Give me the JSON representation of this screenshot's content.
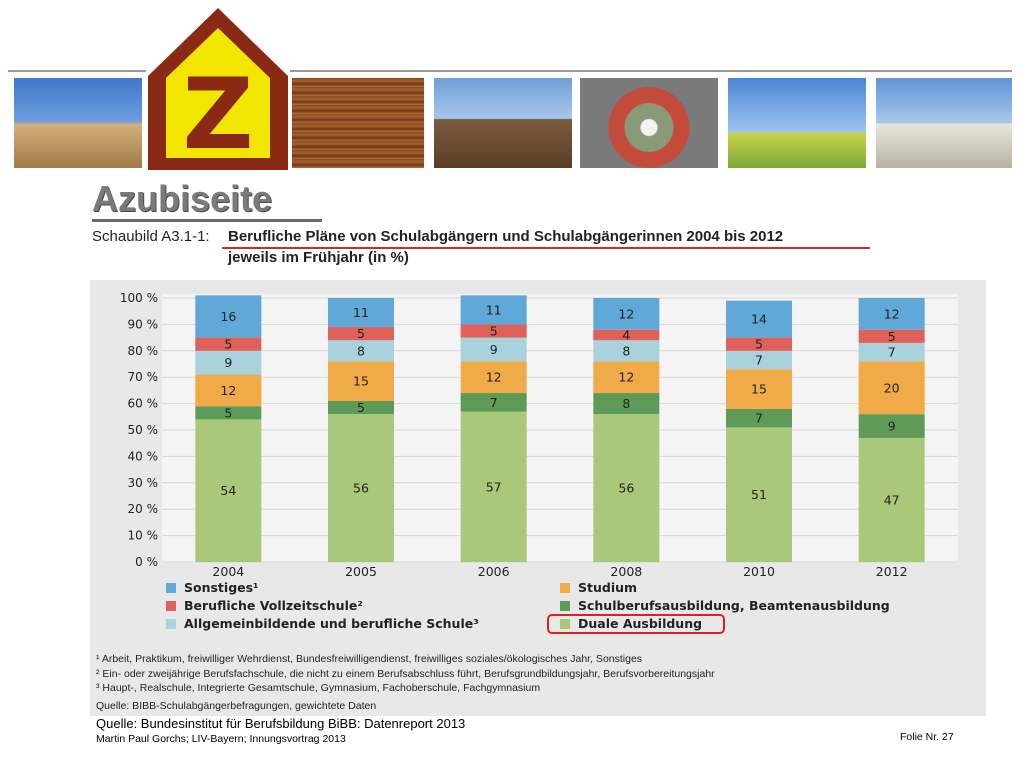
{
  "page": {
    "title": "Azubiseite",
    "schaubild_label": "Schaubild A3.1-1:",
    "chart_heading_line1": "Berufliche Pläne von Schulabgängern und Schulabgängerinnen 2004 bis 2012",
    "chart_heading_line2": "jeweils im Frühjahr (in %)",
    "source": "Quelle: Bundesinstitut für Berufsbildung BiBB: Datenreport 2013",
    "author": "Martin Paul Gorchs; LIV-Bayern; Innungsvortrag 2013",
    "slide_number": "Folie Nr. 27",
    "logo_letter": "Z"
  },
  "colors": {
    "Sonstiges": "#5fa8d8",
    "Berufliche Vollzeitschule": "#e0605a",
    "Allgemeinbildende und berufliche Schule": "#a9d2dc",
    "Studium": "#f0aa48",
    "Schulberufsausbildung": "#5e9a58",
    "Duale Ausbildung": "#aac87a",
    "logo_roof": "#8b2a14",
    "logo_fill": "#f2e600",
    "highlight": "#e02020"
  },
  "chart_data": {
    "type": "bar",
    "stacked": true,
    "categories": [
      "2004",
      "2005",
      "2006",
      "2008",
      "2010",
      "2012"
    ],
    "y_ticks": [
      "0 %",
      "10 %",
      "20 %",
      "30 %",
      "40 %",
      "50 %",
      "60 %",
      "70 %",
      "80 %",
      "90 %",
      "100 %"
    ],
    "ylim": [
      0,
      100
    ],
    "series": [
      {
        "name": "Duale Ausbildung",
        "key": "Duale Ausbildung",
        "values": [
          54,
          56,
          57,
          56,
          51,
          47
        ]
      },
      {
        "name": "Schulberufsausbildung, Beamtenausbildung",
        "key": "Schulberufsausbildung",
        "values": [
          5,
          5,
          7,
          8,
          7,
          9
        ]
      },
      {
        "name": "Studium",
        "key": "Studium",
        "values": [
          12,
          15,
          12,
          12,
          15,
          20
        ]
      },
      {
        "name": "Allgemeinbildende und berufliche Schule³",
        "key": "Allgemeinbildende und berufliche Schule",
        "values": [
          9,
          8,
          9,
          8,
          7,
          7
        ]
      },
      {
        "name": "Berufliche Vollzeitschule²",
        "key": "Berufliche Vollzeitschule",
        "values": [
          5,
          5,
          5,
          4,
          5,
          5
        ]
      },
      {
        "name": "Sonstiges¹",
        "key": "Sonstiges",
        "values": [
          16,
          11,
          11,
          12,
          14,
          12
        ]
      }
    ],
    "legend_order": [
      [
        "Sonstiges¹",
        "Studium"
      ],
      [
        "Berufliche Vollzeitschule²",
        "Schulberufsausbildung, Beamtenausbildung"
      ],
      [
        "Allgemeinbildende und berufliche Schule³",
        "Duale Ausbildung"
      ]
    ],
    "highlighted_legend": "Duale Ausbildung",
    "footnotes": [
      "¹ Arbeit, Praktikum, freiwilliger Wehrdienst, Bundesfreiwilligendienst, freiwilliges soziales/ökologisches Jahr, Sonstiges",
      "² Ein- oder zweijährige Berufsfachschule, die nicht zu einem Berufsabschluss führt, Berufsgrundbildungsjahr, Berufsvorbereitungsjahr",
      "³ Haupt-, Realschule, Integrierte Gesamtschule, Gymnasium, Fachoberschule, Fachgymnasium"
    ],
    "chart_source": "Quelle: BIBB-Schulabgängerbefragungen, gewichtete Daten"
  }
}
